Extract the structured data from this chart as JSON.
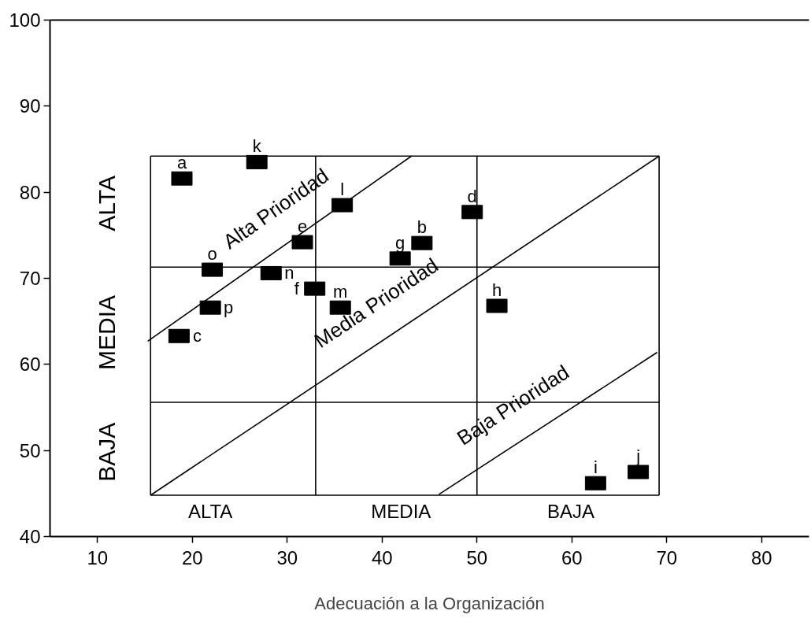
{
  "chart_data": {
    "type": "scatter",
    "xlabel": "Adecuación a la Organización",
    "xlim": [
      5,
      85
    ],
    "ylim": [
      40,
      100
    ],
    "xticks": [
      10,
      20,
      30,
      40,
      50,
      60,
      70,
      80
    ],
    "yticks": [
      40,
      50,
      60,
      70,
      80,
      90,
      100
    ],
    "marker": "square",
    "ref_lines": [
      {
        "axis": "x",
        "value": 15.6
      },
      {
        "axis": "x",
        "value": 33.0
      },
      {
        "axis": "x",
        "value": 50.0
      },
      {
        "axis": "x",
        "value": 69.2
      },
      {
        "axis": "y",
        "value": 44.8
      },
      {
        "axis": "y",
        "value": 55.6
      },
      {
        "axis": "y",
        "value": 71.3
      },
      {
        "axis": "y",
        "value": 84.2
      }
    ],
    "series": [
      {
        "type": "line",
        "color": "#000000",
        "marker": "none",
        "x": [
          15.3,
          43.1
        ],
        "values": [
          62.7,
          84.2
        ]
      },
      {
        "type": "line",
        "color": "#000000",
        "marker": "none",
        "x": [
          15.6,
          69.2
        ],
        "values": [
          44.8,
          84.2
        ]
      },
      {
        "type": "line",
        "color": "#000000",
        "marker": "none",
        "x": [
          46.0,
          69.0
        ],
        "values": [
          44.9,
          61.4
        ]
      },
      {
        "name": "a",
        "color": "#000000",
        "x": [
          18.9
        ],
        "values": [
          81.6
        ]
      },
      {
        "name": "b",
        "color": "#000000",
        "x": [
          44.2
        ],
        "values": [
          74.1
        ]
      },
      {
        "name": "c",
        "color": "#000000",
        "x": [
          18.6
        ],
        "values": [
          63.3
        ]
      },
      {
        "name": "d",
        "color": "#000000",
        "x": [
          49.5
        ],
        "values": [
          77.7
        ]
      },
      {
        "name": "e",
        "color": "#000000",
        "x": [
          31.6
        ],
        "values": [
          74.2
        ]
      },
      {
        "name": "f",
        "color": "#000000",
        "x": [
          32.9
        ],
        "values": [
          68.8
        ]
      },
      {
        "name": "g",
        "color": "#000000",
        "x": [
          41.9
        ],
        "values": [
          72.3
        ]
      },
      {
        "name": "h",
        "color": "#000000",
        "x": [
          52.1
        ],
        "values": [
          66.8
        ]
      },
      {
        "name": "i",
        "color": "#000000",
        "x": [
          62.5
        ],
        "values": [
          46.2
        ]
      },
      {
        "name": "j",
        "color": "#000000",
        "x": [
          67.0
        ],
        "values": [
          47.5
        ]
      },
      {
        "name": "k",
        "color": "#000000",
        "x": [
          26.8
        ],
        "values": [
          83.5
        ]
      },
      {
        "name": "l",
        "color": "#000000",
        "x": [
          35.8
        ],
        "values": [
          78.5
        ]
      },
      {
        "name": "m",
        "color": "#000000",
        "x": [
          35.6
        ],
        "values": [
          66.6
        ]
      },
      {
        "name": "n",
        "color": "#000000",
        "x": [
          28.3
        ],
        "values": [
          70.6
        ]
      },
      {
        "name": "o",
        "color": "#000000",
        "x": [
          22.1
        ],
        "values": [
          71.0
        ]
      },
      {
        "name": "p",
        "color": "#000000",
        "x": [
          21.9
        ],
        "values": [
          66.6
        ]
      }
    ],
    "annotations": [
      {
        "text": "Alta Prioridad",
        "x": 30.9,
        "y": 74.8
      },
      {
        "text": "Media Prioridad",
        "x": 41.4,
        "y": 63.8
      },
      {
        "text": "Baja Prioridad",
        "x": 55.8,
        "y": 51.9
      },
      {
        "text": "ALTA",
        "x": 15.6,
        "y": 78.7
      },
      {
        "text": "MEDIA",
        "x": 15.6,
        "y": 63.7
      },
      {
        "text": "BAJA",
        "x": 15.6,
        "y": 49.8
      },
      {
        "text": "ALTA",
        "x": 21.9,
        "y": 44.8
      },
      {
        "text": "MEDIA",
        "x": 42.0,
        "y": 44.8
      },
      {
        "text": "BAJA",
        "x": 59.9,
        "y": 44.8
      }
    ]
  }
}
